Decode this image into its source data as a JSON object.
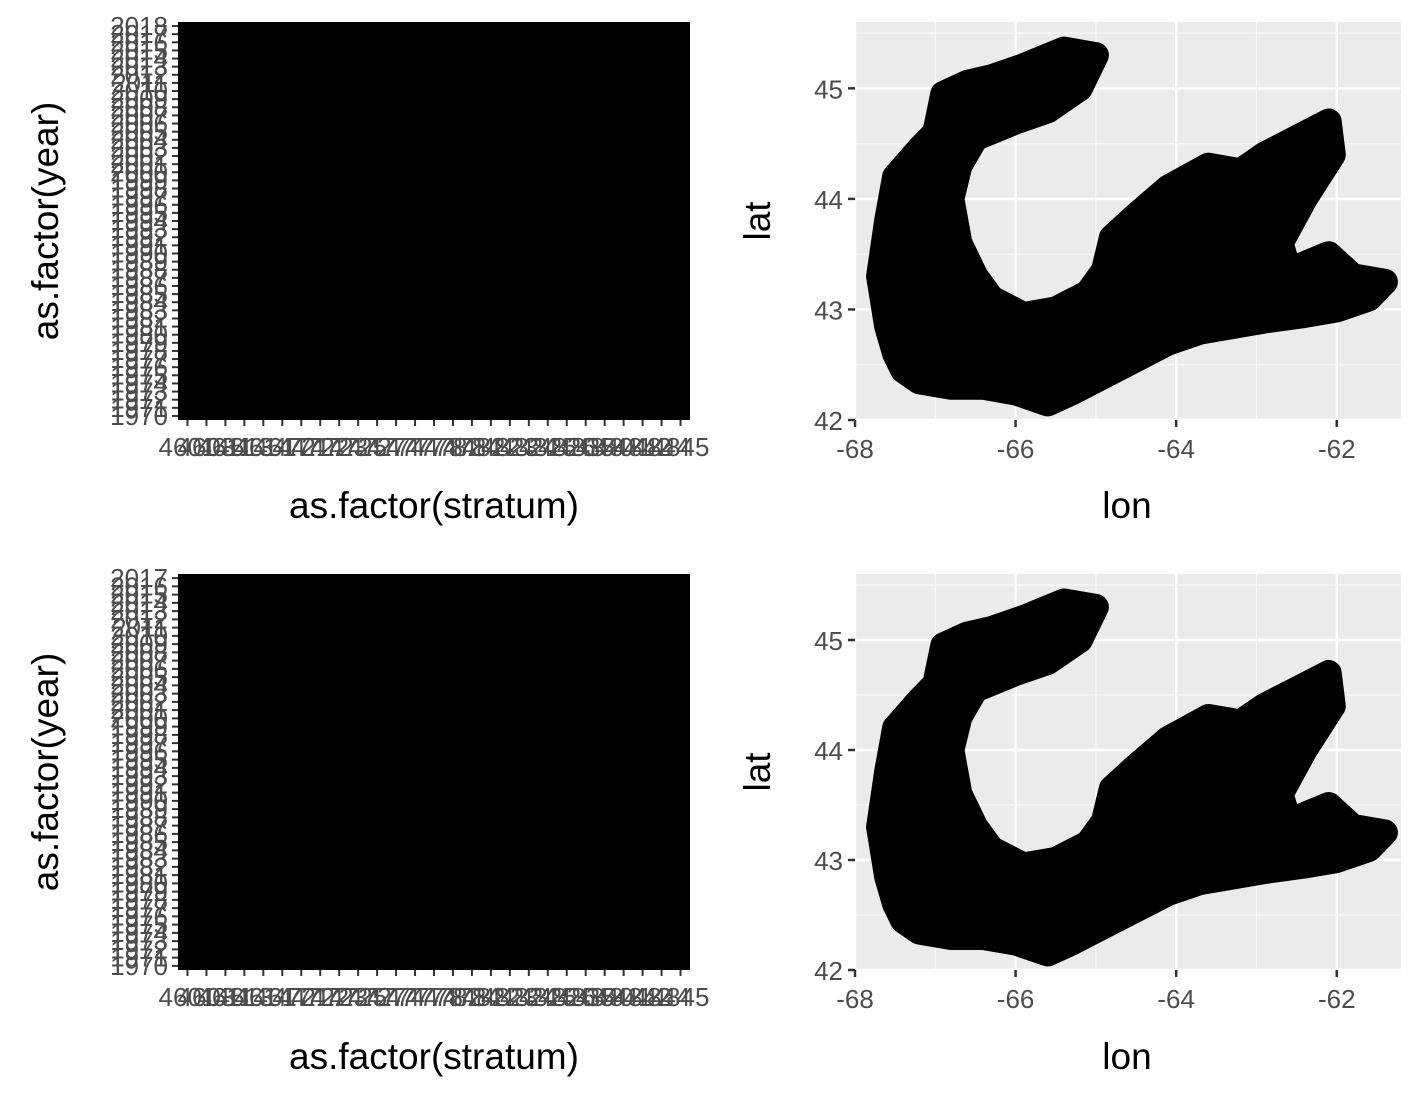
{
  "colors": {
    "panel_bg": "#ebebeb",
    "grid_major": "#ffffff",
    "tick": "#333333",
    "tick_text": "#4d4d4d",
    "ink": "#000000"
  },
  "chart_data": [
    {
      "type": "heatmap",
      "panel": "top-left",
      "xlabel": "as.factor(stratum)",
      "ylabel": "as.factor(year)",
      "x_tick_labels": [
        "4601",
        "4603",
        "4611",
        "4613",
        "4614",
        "4617",
        "4721",
        "4722",
        "4723",
        "4725",
        "4727",
        "4774",
        "4777",
        "4778",
        "4782",
        "4784",
        "4822",
        "4823",
        "4824",
        "4825",
        "4826",
        "4835",
        "4840",
        "4841",
        "4842",
        "4844",
        "4845"
      ],
      "y_tick_labels": [
        "1970",
        "1971",
        "1972",
        "1973",
        "1974",
        "1975",
        "1976",
        "1977",
        "1978",
        "1979",
        "1980",
        "1981",
        "1982",
        "1983",
        "1984",
        "1985",
        "1986",
        "1987",
        "1988",
        "1989",
        "1990",
        "1991",
        "1992",
        "1993",
        "1994",
        "1995",
        "1996",
        "1997",
        "1998",
        "1999",
        "2000",
        "2001",
        "2002",
        "2003",
        "2004",
        "2005",
        "2006",
        "2007",
        "2008",
        "2009",
        "2010",
        "2011",
        "2012",
        "2013",
        "2014",
        "2015",
        "2016",
        "2017",
        "2018"
      ],
      "fill": "#000000",
      "note_all_cells_filled": true
    },
    {
      "type": "scatter",
      "panel": "top-right",
      "xlabel": "lon",
      "ylabel": "lat",
      "x_ticks": [
        -68,
        -66,
        -64,
        -62
      ],
      "y_ticks": [
        42,
        43,
        44,
        45
      ],
      "xlim": [
        -68,
        -61.2
      ],
      "ylim": [
        42,
        45.6
      ],
      "grid": true,
      "outline_lon_lat": [
        [
          -67.6,
          42.85
        ],
        [
          -67.7,
          43.3
        ],
        [
          -67.6,
          43.8
        ],
        [
          -67.5,
          44.2
        ],
        [
          -67.2,
          44.45
        ],
        [
          -67.0,
          44.6
        ],
        [
          -66.9,
          44.95
        ],
        [
          -66.6,
          45.05
        ],
        [
          -66.3,
          45.1
        ],
        [
          -65.9,
          45.2
        ],
        [
          -65.4,
          45.35
        ],
        [
          -65.0,
          45.3
        ],
        [
          -65.2,
          45.0
        ],
        [
          -65.6,
          44.8
        ],
        [
          -66.0,
          44.7
        ],
        [
          -66.5,
          44.55
        ],
        [
          -66.7,
          44.3
        ],
        [
          -66.8,
          44.0
        ],
        [
          -66.7,
          43.6
        ],
        [
          -66.5,
          43.3
        ],
        [
          -66.3,
          43.1
        ],
        [
          -65.9,
          42.95
        ],
        [
          -65.5,
          43.0
        ],
        [
          -65.1,
          43.15
        ],
        [
          -64.9,
          43.35
        ],
        [
          -64.8,
          43.65
        ],
        [
          -64.5,
          43.85
        ],
        [
          -64.1,
          44.1
        ],
        [
          -63.6,
          44.3
        ],
        [
          -63.2,
          44.25
        ],
        [
          -62.9,
          44.4
        ],
        [
          -62.5,
          44.55
        ],
        [
          -62.1,
          44.7
        ],
        [
          -62.05,
          44.4
        ],
        [
          -62.4,
          44.0
        ],
        [
          -62.7,
          43.6
        ],
        [
          -62.6,
          43.35
        ],
        [
          -62.1,
          43.5
        ],
        [
          -61.8,
          43.3
        ],
        [
          -61.4,
          43.25
        ],
        [
          -61.6,
          43.1
        ],
        [
          -62.0,
          43.0
        ],
        [
          -62.4,
          42.95
        ],
        [
          -62.9,
          42.9
        ],
        [
          -63.3,
          42.85
        ],
        [
          -63.7,
          42.8
        ],
        [
          -64.1,
          42.7
        ],
        [
          -64.5,
          42.55
        ],
        [
          -64.9,
          42.4
        ],
        [
          -65.3,
          42.25
        ],
        [
          -65.6,
          42.15
        ],
        [
          -66.0,
          42.25
        ],
        [
          -66.4,
          42.3
        ],
        [
          -66.8,
          42.3
        ],
        [
          -67.2,
          42.35
        ],
        [
          -67.4,
          42.45
        ],
        [
          -67.5,
          42.6
        ]
      ],
      "fill": "#000000"
    },
    {
      "type": "heatmap",
      "panel": "bottom-left",
      "xlabel": "as.factor(stratum)",
      "ylabel": "as.factor(year)",
      "x_tick_labels": [
        "4601",
        "4603",
        "4611",
        "4613",
        "4614",
        "4617",
        "4721",
        "4722",
        "4723",
        "4725",
        "4727",
        "4774",
        "4777",
        "4778",
        "4782",
        "4784",
        "4822",
        "4823",
        "4824",
        "4825",
        "4826",
        "4835",
        "4840",
        "4841",
        "4842",
        "4844",
        "4845"
      ],
      "y_tick_labels": [
        "1970",
        "1971",
        "1972",
        "1973",
        "1974",
        "1975",
        "1976",
        "1977",
        "1978",
        "1979",
        "1980",
        "1981",
        "1982",
        "1983",
        "1984",
        "1985",
        "1986",
        "1987",
        "1988",
        "1989",
        "1990",
        "1991",
        "1992",
        "1993",
        "1994",
        "1995",
        "1996",
        "1997",
        "1998",
        "1999",
        "2000",
        "2001",
        "2002",
        "2003",
        "2004",
        "2005",
        "2006",
        "2007",
        "2008",
        "2009",
        "2010",
        "2011",
        "2012",
        "2013",
        "2014",
        "2015",
        "2016",
        "2017"
      ],
      "fill": "#000000",
      "note_all_cells_filled": true
    },
    {
      "type": "scatter",
      "panel": "bottom-right",
      "xlabel": "lon",
      "ylabel": "lat",
      "x_ticks": [
        -68,
        -66,
        -64,
        -62
      ],
      "y_ticks": [
        42,
        43,
        44,
        45
      ],
      "xlim": [
        -68,
        -61.2
      ],
      "ylim": [
        42,
        45.6
      ],
      "grid": true,
      "outline_lon_lat": [
        [
          -67.6,
          42.85
        ],
        [
          -67.7,
          43.3
        ],
        [
          -67.6,
          43.8
        ],
        [
          -67.5,
          44.2
        ],
        [
          -67.2,
          44.45
        ],
        [
          -67.0,
          44.6
        ],
        [
          -66.9,
          44.95
        ],
        [
          -66.6,
          45.05
        ],
        [
          -66.3,
          45.1
        ],
        [
          -65.9,
          45.2
        ],
        [
          -65.4,
          45.35
        ],
        [
          -65.0,
          45.3
        ],
        [
          -65.2,
          45.0
        ],
        [
          -65.6,
          44.8
        ],
        [
          -66.0,
          44.7
        ],
        [
          -66.5,
          44.55
        ],
        [
          -66.7,
          44.3
        ],
        [
          -66.8,
          44.0
        ],
        [
          -66.7,
          43.6
        ],
        [
          -66.5,
          43.3
        ],
        [
          -66.3,
          43.1
        ],
        [
          -65.9,
          42.95
        ],
        [
          -65.5,
          43.0
        ],
        [
          -65.1,
          43.15
        ],
        [
          -64.9,
          43.35
        ],
        [
          -64.8,
          43.65
        ],
        [
          -64.5,
          43.85
        ],
        [
          -64.1,
          44.1
        ],
        [
          -63.6,
          44.3
        ],
        [
          -63.2,
          44.25
        ],
        [
          -62.9,
          44.4
        ],
        [
          -62.5,
          44.55
        ],
        [
          -62.1,
          44.7
        ],
        [
          -62.05,
          44.4
        ],
        [
          -62.4,
          44.0
        ],
        [
          -62.7,
          43.6
        ],
        [
          -62.6,
          43.35
        ],
        [
          -62.1,
          43.5
        ],
        [
          -61.8,
          43.3
        ],
        [
          -61.4,
          43.25
        ],
        [
          -61.6,
          43.1
        ],
        [
          -62.0,
          43.0
        ],
        [
          -62.4,
          42.95
        ],
        [
          -62.9,
          42.9
        ],
        [
          -63.3,
          42.85
        ],
        [
          -63.7,
          42.8
        ],
        [
          -64.1,
          42.7
        ],
        [
          -64.5,
          42.55
        ],
        [
          -64.9,
          42.4
        ],
        [
          -65.3,
          42.25
        ],
        [
          -65.6,
          42.15
        ],
        [
          -66.0,
          42.25
        ],
        [
          -66.4,
          42.3
        ],
        [
          -66.8,
          42.3
        ],
        [
          -67.2,
          42.35
        ],
        [
          -67.4,
          42.45
        ],
        [
          -67.5,
          42.6
        ]
      ],
      "fill": "#000000"
    }
  ]
}
